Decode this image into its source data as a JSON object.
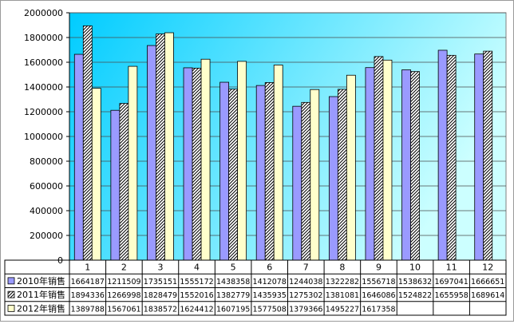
{
  "chart_data": {
    "type": "bar",
    "categories": [
      "1",
      "2",
      "3",
      "4",
      "5",
      "6",
      "7",
      "8",
      "9",
      "10",
      "11",
      "12"
    ],
    "series": [
      {
        "name": "2010年销售",
        "color": "#9a9aff",
        "pattern": "solid",
        "values": [
          1664187,
          1211509,
          1735151,
          1555172,
          1438358,
          1412078,
          1244038,
          1322282,
          1556718,
          1538632,
          1697041,
          1666651
        ]
      },
      {
        "name": "2011年销售",
        "color": "#ffffff",
        "pattern": "diagonal-hatch",
        "values": [
          1894336,
          1266998,
          1828479,
          1552016,
          1382779,
          1435935,
          1275302,
          1381081,
          1646086,
          1524822,
          1655958,
          1689614
        ]
      },
      {
        "name": "2012年销售",
        "color": "#ffffcc",
        "pattern": "solid",
        "values": [
          1389788,
          1567061,
          1838572,
          1624412,
          1607195,
          1577508,
          1379366,
          1495227,
          1617358,
          null,
          null,
          null
        ]
      }
    ],
    "ylim": [
      0,
      2000000
    ],
    "yticks": [
      "0",
      "200000",
      "400000",
      "600000",
      "800000",
      "1000000",
      "1200000",
      "1400000",
      "1600000",
      "1800000",
      "2000000"
    ],
    "grid": true,
    "legend": "data-table-left",
    "title": "",
    "xlabel": "",
    "ylabel": "",
    "plot_background": {
      "from": "#00ccff",
      "to": "#ccffff"
    }
  }
}
